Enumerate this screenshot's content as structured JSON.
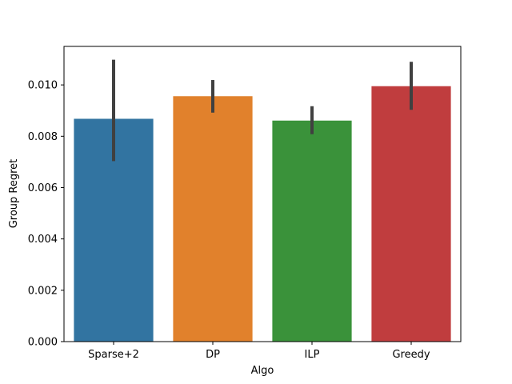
{
  "chart_data": {
    "type": "bar",
    "title": "",
    "xlabel": "Algo",
    "ylabel": "Group Regret",
    "ylim": [
      0,
      0.0115
    ],
    "yticks": [
      "0.000",
      "0.002",
      "0.004",
      "0.006",
      "0.008",
      "0.010"
    ],
    "grid": false,
    "legend": "none",
    "categories": [
      "Sparse+2",
      "DP",
      "ILP",
      "Greedy"
    ],
    "values": [
      0.00868,
      0.00956,
      0.00861,
      0.00995
    ],
    "error_low": [
      0.00703,
      0.00892,
      0.00808,
      0.00903
    ],
    "error_high": [
      0.01098,
      0.01019,
      0.00917,
      0.0109
    ],
    "colors": [
      "#3274a1",
      "#e1812c",
      "#3a923a",
      "#c03d3e"
    ],
    "errorbar_color": "#404040"
  }
}
